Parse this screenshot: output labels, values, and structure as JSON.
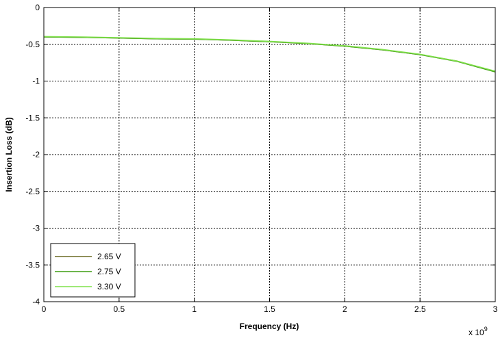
{
  "chart_data": {
    "type": "line",
    "title": "",
    "xlabel": "Frequency (Hz)",
    "ylabel": "Insertion Loss (dB)",
    "x_exponent_label": "x 10",
    "x_exponent_power": "9",
    "xlim": [
      0,
      3
    ],
    "ylim": [
      -4,
      0
    ],
    "x_ticks": [
      0,
      0.5,
      1,
      1.5,
      2,
      2.5,
      3
    ],
    "x_tick_labels": [
      "0",
      "0.5",
      "1",
      "1.5",
      "2",
      "2.5",
      "3"
    ],
    "y_ticks": [
      0,
      -0.5,
      -1,
      -1.5,
      -2,
      -2.5,
      -3,
      -3.5,
      -4
    ],
    "y_tick_labels": [
      "0",
      "-0.5",
      "-1",
      "-1.5",
      "-2",
      "-2.5",
      "-3",
      "-3.5",
      "-4"
    ],
    "grid": true,
    "legend_position": "bottom-left",
    "x": [
      0,
      0.25,
      0.5,
      0.75,
      1.0,
      1.25,
      1.5,
      1.75,
      2.0,
      2.25,
      2.5,
      2.75,
      3.0
    ],
    "series": [
      {
        "name": "2.65 V",
        "color": "#6b6b24",
        "values": [
          -0.4,
          -0.405,
          -0.415,
          -0.425,
          -0.43,
          -0.445,
          -0.465,
          -0.49,
          -0.525,
          -0.575,
          -0.64,
          -0.73,
          -0.87
        ]
      },
      {
        "name": "2.75 V",
        "color": "#3f9e12",
        "values": [
          -0.4,
          -0.405,
          -0.415,
          -0.425,
          -0.43,
          -0.445,
          -0.465,
          -0.49,
          -0.525,
          -0.575,
          -0.64,
          -0.735,
          -0.875
        ]
      },
      {
        "name": "3.30 V",
        "color": "#7fe04a",
        "values": [
          -0.395,
          -0.4,
          -0.41,
          -0.42,
          -0.425,
          -0.44,
          -0.46,
          -0.485,
          -0.52,
          -0.57,
          -0.635,
          -0.73,
          -0.865
        ]
      }
    ]
  }
}
